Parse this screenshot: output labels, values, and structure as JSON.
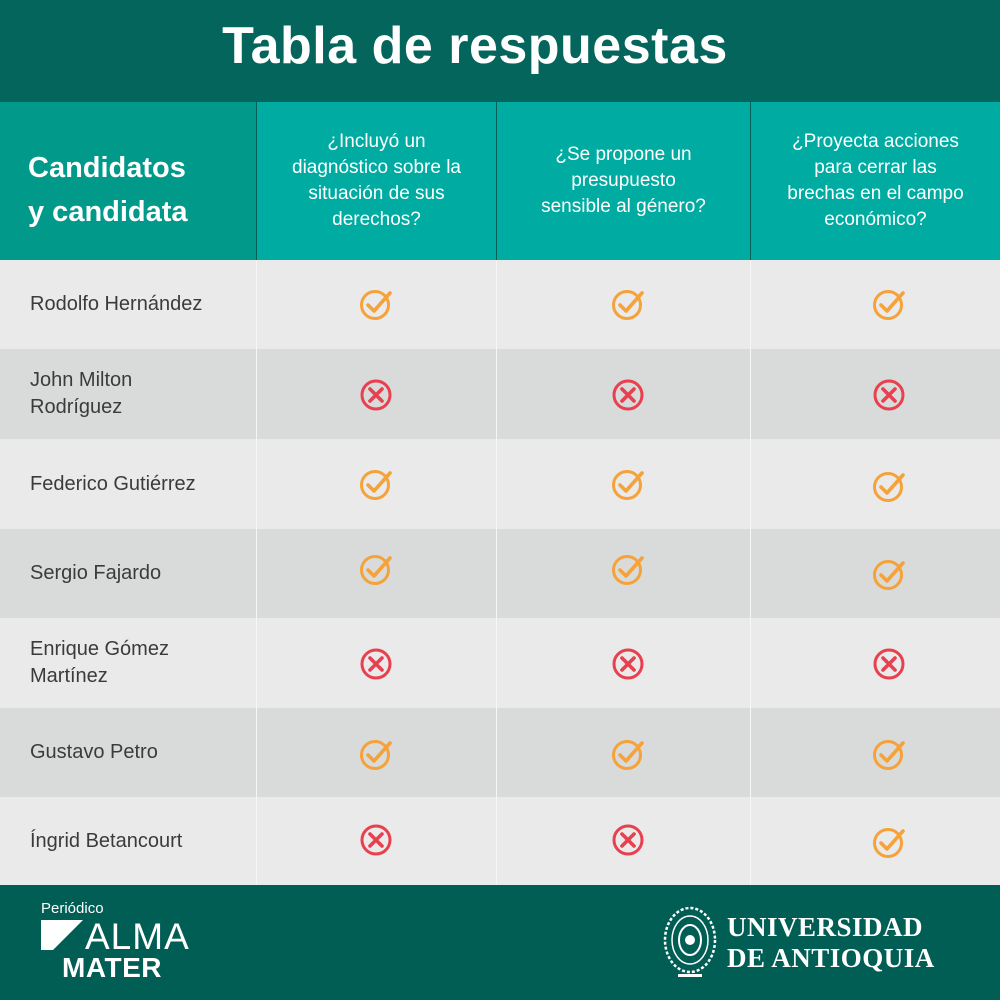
{
  "title": "Tabla de respuestas",
  "table": {
    "candidates_header": [
      "Candidatos",
      "y candidata"
    ],
    "questions": [
      [
        "¿Incluyó un",
        "diagnóstico sobre la",
        "situación de sus",
        "derechos?"
      ],
      [
        "¿Se propone un",
        "presupuesto",
        "sensible al género?"
      ],
      [
        "¿Proyecta acciones",
        "para cerrar las",
        "brechas en el campo",
        "económico?"
      ]
    ],
    "rows": [
      {
        "name": [
          "Rodolfo Hernández"
        ],
        "answers": [
          "check",
          "check",
          "check"
        ]
      },
      {
        "name": [
          "John Milton",
          "Rodríguez"
        ],
        "answers": [
          "cross",
          "cross",
          "cross"
        ]
      },
      {
        "name": [
          "Federico Gutiérrez"
        ],
        "answers": [
          "check",
          "check",
          "check"
        ]
      },
      {
        "name": [
          "Sergio Fajardo"
        ],
        "answers": [
          "check",
          "check",
          "check"
        ]
      },
      {
        "name": [
          "Enrique Gómez",
          "Martínez"
        ],
        "answers": [
          "cross",
          "cross",
          "cross"
        ]
      },
      {
        "name": [
          "Gustavo Petro"
        ],
        "answers": [
          "check",
          "check",
          "check"
        ]
      },
      {
        "name": [
          "Íngrid Betancourt"
        ],
        "answers": [
          "cross",
          "cross",
          "check"
        ]
      }
    ]
  },
  "footer": {
    "periodico_label": "Periódico",
    "alma_label": "ALMA",
    "mater_label": "MATER",
    "university_lines": [
      "UNIVERSIDAD",
      "DE ANTIOQUIA"
    ]
  },
  "colors": {
    "check": "#f5a23a",
    "cross": "#e8404f",
    "header_dark": "#03655b",
    "header_teal": "#00aca2"
  }
}
